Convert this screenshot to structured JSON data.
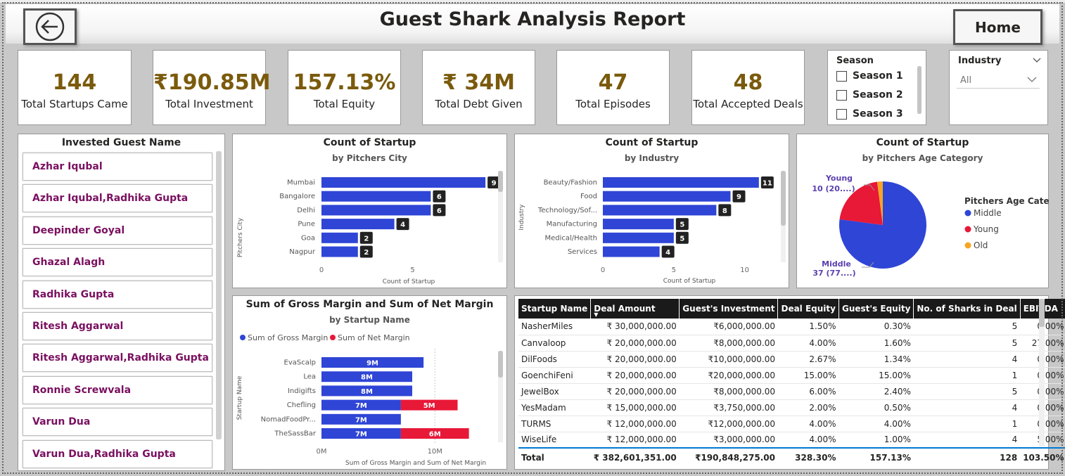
{
  "header": {
    "title": "Guest Shark Analysis Report",
    "home_label": "Home"
  },
  "kpis": [
    {
      "value": "144",
      "label": "Total Startups Came"
    },
    {
      "value": "₹190.85M",
      "label": "Total Investment"
    },
    {
      "value": "157.13%",
      "label": "Total Equity"
    },
    {
      "value": "₹ 34M",
      "label": "Total Debt Given"
    },
    {
      "value": "47",
      "label": "Total Episodes"
    },
    {
      "value": "48",
      "label": "Total Accepted Deals"
    }
  ],
  "season_slicer": {
    "title": "Season",
    "options": [
      "Season 1",
      "Season 2",
      "Season 3"
    ]
  },
  "industry_slicer": {
    "title": "Industry",
    "selected": "All"
  },
  "guests": {
    "title": "Invested Guest Name",
    "items": [
      "Azhar Iqubal",
      "Azhar Iqubal,Radhika Gupta",
      "Deepinder Goyal",
      "Ghazal Alagh",
      "Radhika Gupta",
      "Ritesh Aggarwal",
      "Ritesh Aggarwal,Radhika Gupta",
      "Ronnie Screwvala",
      "Varun Dua",
      "Varun Dua,Radhika Gupta"
    ]
  },
  "city_chart": {
    "title": "Count of Startup",
    "subtitle": "by Pitchers City",
    "ylabel": "Pitchers City",
    "xlabel": "Count of Startup"
  },
  "industry_chart": {
    "title": "Count of Startup",
    "subtitle": "by Industry",
    "ylabel": "Industry",
    "xlabel": "Count of Startup"
  },
  "age_chart": {
    "title": "Count of Startup",
    "subtitle": "by Pitchers Age Category",
    "legend_title": "Pitchers Age Cate...",
    "young_label": "Young",
    "young_value": "10 (20....)",
    "middle_label": "Middle",
    "middle_value": "37 (77....)"
  },
  "margin_chart": {
    "title": "Sum of Gross Margin and Sum of Net Margin",
    "subtitle": "by Startup Name",
    "ylabel": "Startup Name",
    "xlabel": "Sum of Gross Margin and Sum of Net Margin"
  },
  "chart_data": [
    {
      "type": "bar",
      "orientation": "horizontal",
      "categories": [
        "Mumbai",
        "Bangalore",
        "Delhi",
        "Pune",
        "Goa",
        "Nagpur"
      ],
      "values": [
        9,
        6,
        6,
        4,
        2,
        2
      ],
      "xticks": [
        "0",
        "5"
      ],
      "xlim": [
        0,
        10
      ],
      "color": "#2f45d6"
    },
    {
      "type": "bar",
      "orientation": "horizontal",
      "categories": [
        "Beauty/Fashion",
        "Food",
        "Technology/Sof...",
        "Manufacturing",
        "Medical/Health",
        "Services"
      ],
      "values": [
        11,
        9,
        8,
        5,
        5,
        4
      ],
      "xticks": [
        "0",
        "5",
        "10"
      ],
      "xlim": [
        0,
        12
      ],
      "color": "#2f45d6"
    },
    {
      "type": "pie",
      "series": [
        {
          "name": "Middle",
          "value": 37,
          "color": "#2f45d6"
        },
        {
          "name": "Young",
          "value": 10,
          "color": "#e81837"
        },
        {
          "name": "Old",
          "value": 1,
          "color": "#f5a623"
        }
      ]
    },
    {
      "type": "bar",
      "orientation": "horizontal",
      "stacked": true,
      "categories": [
        "EvaScalp",
        "Lea",
        "Indigifts",
        "Chefling",
        "NomadFoodPr...",
        "TheSassBar"
      ],
      "series": [
        {
          "name": "Sum of  Gross Margin",
          "values": [
            9,
            8,
            8,
            7,
            7,
            7
          ],
          "labels": [
            "9M",
            "8M",
            "8M",
            "7M",
            "7M",
            "7M"
          ],
          "color": "#2f45d6"
        },
        {
          "name": "Sum of  Net Margin",
          "values": [
            0,
            0,
            0,
            5,
            0,
            6
          ],
          "labels": [
            "",
            "",
            "",
            "5M",
            "",
            "6M"
          ],
          "color": "#e81837"
        }
      ],
      "xticks": [
        "0M",
        "10M"
      ],
      "xlim": [
        0,
        16
      ]
    }
  ],
  "deals_table": {
    "columns": [
      "Startup Name",
      "Deal Amount",
      "Guest's Investment",
      "Deal Equity",
      "Guest's Equity",
      "No. of Sharks in Deal",
      "EBITDA"
    ],
    "rows": [
      [
        "NasherMiles",
        "₹ 30,000,000.00",
        "₹6,000,000.00",
        "1.50%",
        "0.30%",
        "5",
        "0.00%"
      ],
      [
        "Canvaloop",
        "₹ 20,000,000.00",
        "₹8,000,000.00",
        "4.00%",
        "1.60%",
        "5",
        "27.00%"
      ],
      [
        "DilFoods",
        "₹ 20,000,000.00",
        "₹10,000,000.00",
        "2.67%",
        "1.34%",
        "4",
        "0.00%"
      ],
      [
        "GoenchiFeni",
        "₹ 20,000,000.00",
        "₹20,000,000.00",
        "15.00%",
        "15.00%",
        "1",
        "0.00%"
      ],
      [
        "JewelBox",
        "₹ 20,000,000.00",
        "₹8,000,000.00",
        "6.00%",
        "2.40%",
        "5",
        "0.00%"
      ],
      [
        "YesMadam",
        "₹ 15,000,000.00",
        "₹3,750,000.00",
        "2.00%",
        "0.50%",
        "4",
        "0.00%"
      ],
      [
        "TURMS",
        "₹ 12,000,000.00",
        "₹12,000,000.00",
        "4.00%",
        "4.00%",
        "1",
        "0.00%"
      ],
      [
        "WiseLife",
        "₹ 12,000,000.00",
        "₹3,000,000.00",
        "4.00%",
        "1.00%",
        "4",
        "5.00%"
      ]
    ],
    "total": [
      "Total",
      "₹ 382,601,351.00",
      "₹190,848,275.00",
      "328.30%",
      "157.13%",
      "128",
      "103.50%"
    ]
  }
}
